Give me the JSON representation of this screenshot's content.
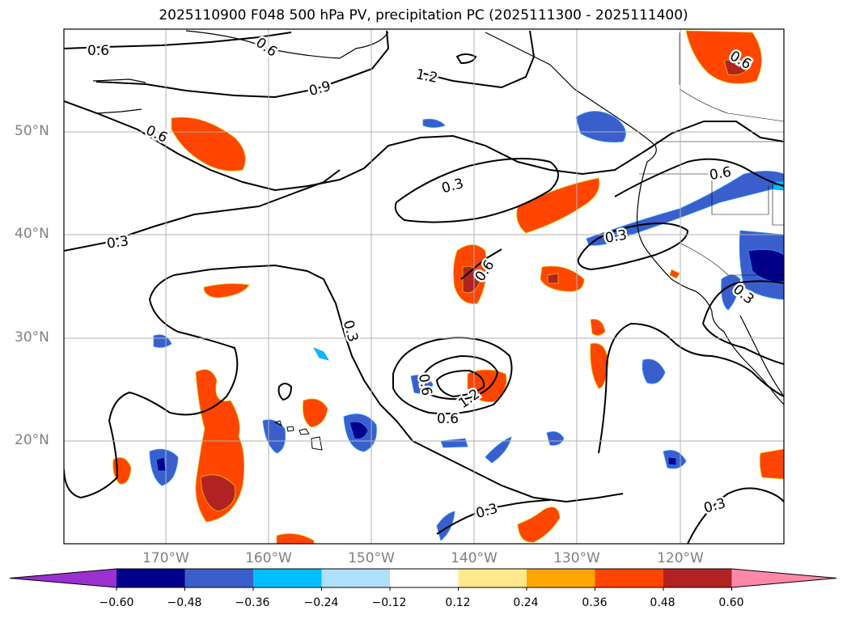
{
  "title": "2025110900 F048 500 hPa PV, precipitation PC (2025111300 - 2025111400)",
  "axes": {
    "lat_ticks": [
      "50°N",
      "40°N",
      "30°N",
      "20°N"
    ],
    "lon_ticks": [
      "170°W",
      "160°W",
      "150°W",
      "140°W",
      "130°W",
      "120°W"
    ]
  },
  "contour_labels": [
    "0.6",
    "0.6",
    "0.9",
    "1.2",
    "0.6",
    "0.3",
    "0.3",
    "0.3",
    "0.6",
    "0.6",
    "0.3",
    "0.3",
    "0.6",
    "1.2",
    "0.6",
    "0.6",
    "0.3",
    "0.3"
  ],
  "colorbar": {
    "tick_labels": [
      "−0.60",
      "−0.48",
      "−0.36",
      "−0.24",
      "−0.12",
      "0.12",
      "0.24",
      "0.36",
      "0.48",
      "0.60"
    ],
    "colors": [
      "#9b30d0",
      "#00008b",
      "#3a5fcd",
      "#00bfff",
      "#aee0fa",
      "#ffffff",
      "#ffe98c",
      "#ffa500",
      "#ff4500",
      "#b22222",
      "#ff88aa"
    ]
  },
  "chart_data": {
    "type": "map",
    "title": "2025110900 F048 500 hPa PV, precipitation PC (2025111300 - 2025111400)",
    "fields": [
      "500 hPa PV contours",
      "precipitation PC shading"
    ],
    "extent": {
      "lon": [
        -180,
        -110
      ],
      "lat": [
        10,
        60
      ]
    },
    "contour_levels": [
      0.3,
      0.6,
      0.9,
      1.2
    ],
    "shading_levels": [
      -0.6,
      -0.48,
      -0.36,
      -0.24,
      -0.12,
      0.12,
      0.24,
      0.36,
      0.48,
      0.6
    ]
  }
}
